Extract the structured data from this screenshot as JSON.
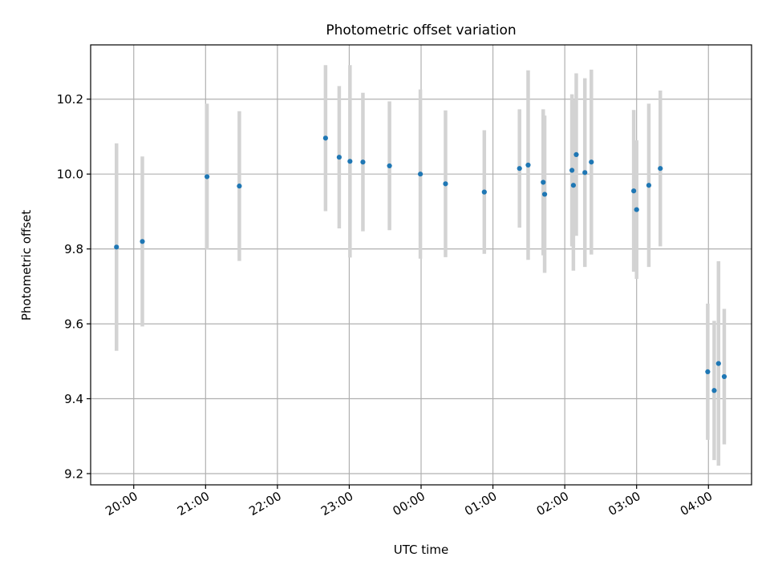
{
  "chart_data": {
    "type": "scatter",
    "title": "Photometric offset variation",
    "xlabel": "UTC time",
    "ylabel": "Photometric offset",
    "x_unit": "UTC time (hours; values past midnight exceed 24)",
    "xlim": [
      19.4,
      28.6
    ],
    "ylim": [
      9.17,
      10.345
    ],
    "x_ticks": [
      {
        "value": 20,
        "label": "20:00"
      },
      {
        "value": 21,
        "label": "21:00"
      },
      {
        "value": 22,
        "label": "22:00"
      },
      {
        "value": 23,
        "label": "23:00"
      },
      {
        "value": 24,
        "label": "00:00"
      },
      {
        "value": 25,
        "label": "01:00"
      },
      {
        "value": 26,
        "label": "02:00"
      },
      {
        "value": 27,
        "label": "03:00"
      },
      {
        "value": 28,
        "label": "04:00"
      }
    ],
    "y_ticks": [
      {
        "value": 9.2,
        "label": "9.2"
      },
      {
        "value": 9.4,
        "label": "9.4"
      },
      {
        "value": 9.6,
        "label": "9.6"
      },
      {
        "value": 9.8,
        "label": "9.8"
      },
      {
        "value": 10.0,
        "label": "10.0"
      },
      {
        "value": 10.2,
        "label": "10.2"
      }
    ],
    "grid": true,
    "colors": {
      "point": "#1f77b4",
      "errorbar": "#d3d3d3",
      "grid": "#b0b0b0"
    },
    "points": [
      {
        "x": 19.76,
        "y": 9.805,
        "err": 0.277
      },
      {
        "x": 20.12,
        "y": 9.82,
        "err": 0.227
      },
      {
        "x": 21.02,
        "y": 9.993,
        "err": 0.195
      },
      {
        "x": 21.47,
        "y": 9.968,
        "err": 0.2
      },
      {
        "x": 22.67,
        "y": 10.096,
        "err": 0.195
      },
      {
        "x": 22.86,
        "y": 10.045,
        "err": 0.19
      },
      {
        "x": 23.01,
        "y": 10.034,
        "err": 0.257
      },
      {
        "x": 23.19,
        "y": 10.032,
        "err": 0.185
      },
      {
        "x": 23.56,
        "y": 10.022,
        "err": 0.172
      },
      {
        "x": 23.99,
        "y": 10.0,
        "err": 0.226
      },
      {
        "x": 24.34,
        "y": 9.974,
        "err": 0.196
      },
      {
        "x": 24.88,
        "y": 9.952,
        "err": 0.165
      },
      {
        "x": 25.37,
        "y": 10.015,
        "err": 0.158
      },
      {
        "x": 25.49,
        "y": 10.024,
        "err": 0.253
      },
      {
        "x": 25.7,
        "y": 9.978,
        "err": 0.195
      },
      {
        "x": 25.72,
        "y": 9.946,
        "err": 0.21
      },
      {
        "x": 26.1,
        "y": 10.01,
        "err": 0.203
      },
      {
        "x": 26.12,
        "y": 9.97,
        "err": 0.228
      },
      {
        "x": 26.16,
        "y": 10.052,
        "err": 0.217
      },
      {
        "x": 26.28,
        "y": 10.004,
        "err": 0.252
      },
      {
        "x": 26.37,
        "y": 10.032,
        "err": 0.247
      },
      {
        "x": 26.96,
        "y": 9.955,
        "err": 0.216
      },
      {
        "x": 27.0,
        "y": 9.905,
        "err": 0.185
      },
      {
        "x": 27.17,
        "y": 9.97,
        "err": 0.218
      },
      {
        "x": 27.33,
        "y": 10.015,
        "err": 0.208
      },
      {
        "x": 27.99,
        "y": 9.472,
        "err": 0.182
      },
      {
        "x": 28.08,
        "y": 9.422,
        "err": 0.186
      },
      {
        "x": 28.14,
        "y": 9.494,
        "err": 0.273
      },
      {
        "x": 28.22,
        "y": 9.459,
        "err": 0.181
      }
    ]
  }
}
